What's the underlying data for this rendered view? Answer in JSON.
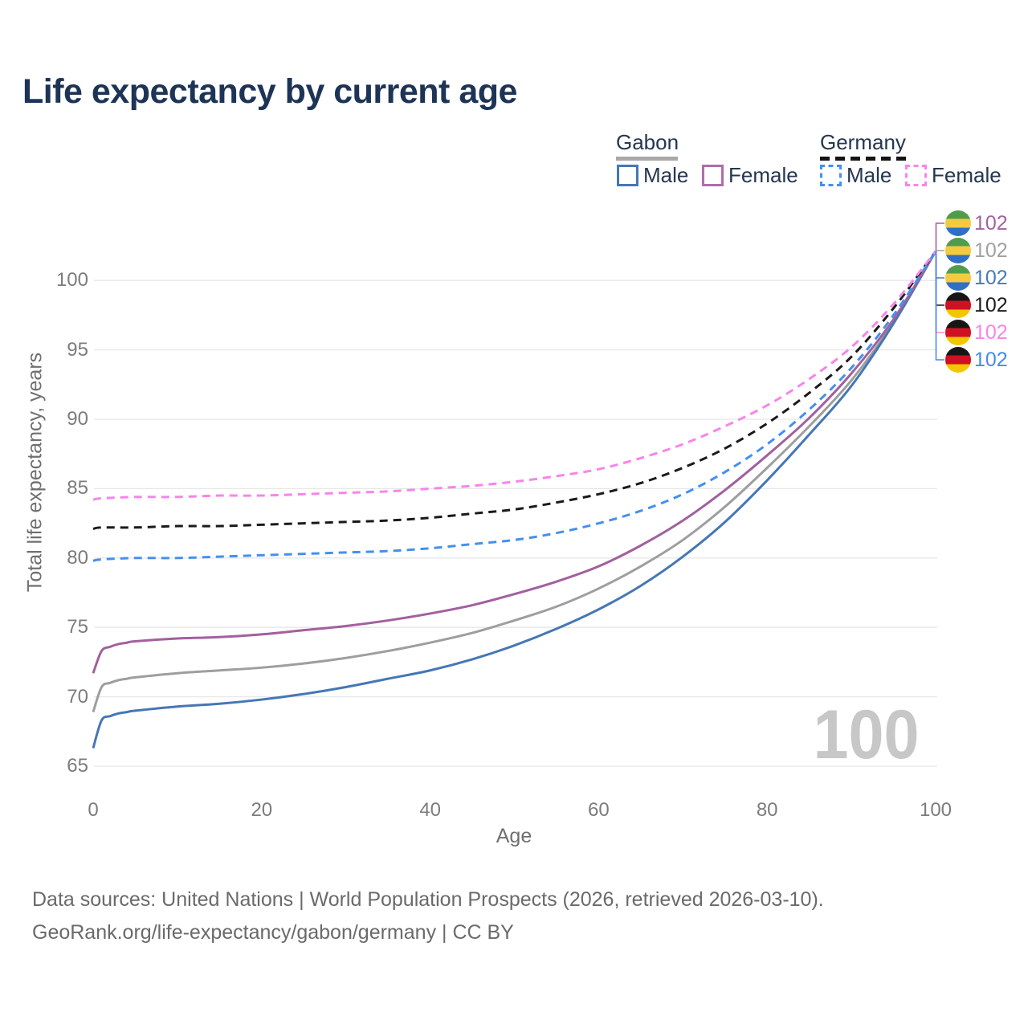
{
  "title": "Life expectancy by current age",
  "watermark_age": "100",
  "axes": {
    "x_title": "Age",
    "y_title": "Total life expectancy, years",
    "x_ticks": [
      0,
      20,
      40,
      60,
      80,
      100
    ],
    "y_ticks": [
      65,
      70,
      75,
      80,
      85,
      90,
      95,
      100
    ]
  },
  "legend": {
    "gabon": {
      "label": "Gabon",
      "male": "Male",
      "female": "Female"
    },
    "germany": {
      "label": "Germany",
      "male": "Male",
      "female": "Female"
    }
  },
  "footer": {
    "line1": "Data sources: United Nations | World Population Prospects (2026, retrieved 2026-03-10).",
    "line2": "GeoRank.org/life-expectancy/gabon/germany | CC BY"
  },
  "flags": {
    "gabon": [
      "#4f9d4c",
      "#f4ca41",
      "#2f6fc8"
    ],
    "germany": [
      "#161616",
      "#cf1124",
      "#f3c700"
    ]
  },
  "end_labels": [
    {
      "country": "gabon",
      "series": "Gabon Female",
      "value": "102",
      "color": "#a2639f"
    },
    {
      "country": "gabon",
      "series": "Gabon Both sexes",
      "value": "102",
      "color": "#a0a0a0"
    },
    {
      "country": "gabon",
      "series": "Gabon Male",
      "value": "102",
      "color": "#4679bd"
    },
    {
      "country": "germany",
      "series": "Germany Both sexes",
      "value": "102",
      "color": "#1c1c1c"
    },
    {
      "country": "germany",
      "series": "Germany Female",
      "value": "102",
      "color": "#f884ea"
    },
    {
      "country": "germany",
      "series": "Germany Male",
      "value": "102",
      "color": "#418cf0"
    }
  ],
  "chart_data": {
    "type": "line",
    "title": "Life expectancy by current age",
    "xlabel": "Age",
    "ylabel": "Total life expectancy, years",
    "xlim": [
      0,
      100
    ],
    "ylim": [
      65,
      103
    ],
    "grid": "horizontal",
    "x_ticks": [
      0,
      20,
      40,
      60,
      80,
      100
    ],
    "y_ticks": [
      65,
      70,
      75,
      80,
      85,
      90,
      95,
      100
    ],
    "note": "All six series converge to total life expectancy 102 at current age 100",
    "series": [
      {
        "id": "gabon-both",
        "name": "Gabon Both sexes",
        "country": "Gabon",
        "sex": "both",
        "style": "solid",
        "color": "#9e9e9e",
        "points": [
          [
            0,
            68.9
          ],
          [
            1,
            70.7
          ],
          [
            2,
            71.0
          ],
          [
            3,
            71.2
          ],
          [
            4,
            71.3
          ],
          [
            5,
            71.4
          ],
          [
            10,
            71.7
          ],
          [
            15,
            71.9
          ],
          [
            20,
            72.1
          ],
          [
            25,
            72.4
          ],
          [
            30,
            72.8
          ],
          [
            35,
            73.3
          ],
          [
            40,
            73.9
          ],
          [
            45,
            74.6
          ],
          [
            50,
            75.5
          ],
          [
            55,
            76.5
          ],
          [
            60,
            77.8
          ],
          [
            65,
            79.4
          ],
          [
            70,
            81.3
          ],
          [
            75,
            83.7
          ],
          [
            80,
            86.5
          ],
          [
            85,
            89.5
          ],
          [
            90,
            92.8
          ],
          [
            95,
            97.0
          ],
          [
            100,
            102.1
          ]
        ]
      },
      {
        "id": "gabon-male",
        "name": "Gabon Male",
        "country": "Gabon",
        "sex": "male",
        "style": "solid",
        "color": "#4577b6",
        "points": [
          [
            0,
            66.3
          ],
          [
            1,
            68.3
          ],
          [
            2,
            68.6
          ],
          [
            3,
            68.8
          ],
          [
            4,
            68.9
          ],
          [
            5,
            69.0
          ],
          [
            10,
            69.3
          ],
          [
            15,
            69.5
          ],
          [
            20,
            69.8
          ],
          [
            25,
            70.2
          ],
          [
            30,
            70.7
          ],
          [
            35,
            71.3
          ],
          [
            40,
            71.9
          ],
          [
            45,
            72.7
          ],
          [
            50,
            73.7
          ],
          [
            55,
            74.9
          ],
          [
            60,
            76.3
          ],
          [
            65,
            78.0
          ],
          [
            70,
            80.1
          ],
          [
            75,
            82.6
          ],
          [
            80,
            85.6
          ],
          [
            85,
            88.9
          ],
          [
            90,
            92.4
          ],
          [
            95,
            96.9
          ],
          [
            100,
            102.1
          ]
        ]
      },
      {
        "id": "gabon-female",
        "name": "Gabon Female",
        "country": "Gabon",
        "sex": "female",
        "style": "solid",
        "color": "#a2609e",
        "points": [
          [
            0,
            71.7
          ],
          [
            1,
            73.3
          ],
          [
            2,
            73.6
          ],
          [
            3,
            73.8
          ],
          [
            4,
            73.9
          ],
          [
            5,
            74.0
          ],
          [
            10,
            74.2
          ],
          [
            15,
            74.3
          ],
          [
            20,
            74.5
          ],
          [
            25,
            74.8
          ],
          [
            30,
            75.1
          ],
          [
            35,
            75.5
          ],
          [
            40,
            76.0
          ],
          [
            45,
            76.6
          ],
          [
            50,
            77.4
          ],
          [
            55,
            78.3
          ],
          [
            60,
            79.4
          ],
          [
            65,
            80.9
          ],
          [
            70,
            82.7
          ],
          [
            75,
            84.9
          ],
          [
            80,
            87.4
          ],
          [
            85,
            90.1
          ],
          [
            90,
            93.3
          ],
          [
            95,
            97.2
          ],
          [
            100,
            102.1
          ]
        ]
      },
      {
        "id": "germany-both",
        "name": "Germany Both sexes",
        "country": "Germany",
        "sex": "both",
        "style": "dashed",
        "color": "#1a1a1a",
        "points": [
          [
            0,
            82.1
          ],
          [
            1,
            82.2
          ],
          [
            5,
            82.2
          ],
          [
            10,
            82.3
          ],
          [
            15,
            82.3
          ],
          [
            20,
            82.4
          ],
          [
            25,
            82.5
          ],
          [
            30,
            82.6
          ],
          [
            35,
            82.7
          ],
          [
            40,
            82.9
          ],
          [
            45,
            83.2
          ],
          [
            50,
            83.5
          ],
          [
            55,
            84.0
          ],
          [
            60,
            84.6
          ],
          [
            65,
            85.4
          ],
          [
            70,
            86.5
          ],
          [
            75,
            87.9
          ],
          [
            80,
            89.7
          ],
          [
            85,
            91.9
          ],
          [
            90,
            94.5
          ],
          [
            95,
            98.0
          ],
          [
            100,
            102.1
          ]
        ]
      },
      {
        "id": "germany-male",
        "name": "Germany Male",
        "country": "Germany",
        "sex": "male",
        "style": "dashed",
        "color": "#4490ef",
        "points": [
          [
            0,
            79.8
          ],
          [
            1,
            79.9
          ],
          [
            5,
            80.0
          ],
          [
            10,
            80.0
          ],
          [
            15,
            80.1
          ],
          [
            20,
            80.2
          ],
          [
            25,
            80.3
          ],
          [
            30,
            80.4
          ],
          [
            35,
            80.5
          ],
          [
            40,
            80.7
          ],
          [
            45,
            81.0
          ],
          [
            50,
            81.3
          ],
          [
            55,
            81.8
          ],
          [
            60,
            82.5
          ],
          [
            65,
            83.4
          ],
          [
            70,
            84.6
          ],
          [
            75,
            86.2
          ],
          [
            80,
            88.2
          ],
          [
            85,
            90.7
          ],
          [
            90,
            93.7
          ],
          [
            95,
            97.5
          ],
          [
            100,
            102.1
          ]
        ]
      },
      {
        "id": "germany-female",
        "name": "Germany Female",
        "country": "Germany",
        "sex": "female",
        "style": "dashed",
        "color": "#f884ea",
        "points": [
          [
            0,
            84.2
          ],
          [
            1,
            84.3
          ],
          [
            5,
            84.4
          ],
          [
            10,
            84.4
          ],
          [
            15,
            84.5
          ],
          [
            20,
            84.5
          ],
          [
            25,
            84.6
          ],
          [
            30,
            84.7
          ],
          [
            35,
            84.8
          ],
          [
            40,
            85.0
          ],
          [
            45,
            85.2
          ],
          [
            50,
            85.5
          ],
          [
            55,
            85.9
          ],
          [
            60,
            86.4
          ],
          [
            65,
            87.2
          ],
          [
            70,
            88.2
          ],
          [
            75,
            89.5
          ],
          [
            80,
            91.0
          ],
          [
            85,
            92.9
          ],
          [
            90,
            95.2
          ],
          [
            95,
            98.3
          ],
          [
            100,
            102.1
          ]
        ]
      }
    ]
  }
}
